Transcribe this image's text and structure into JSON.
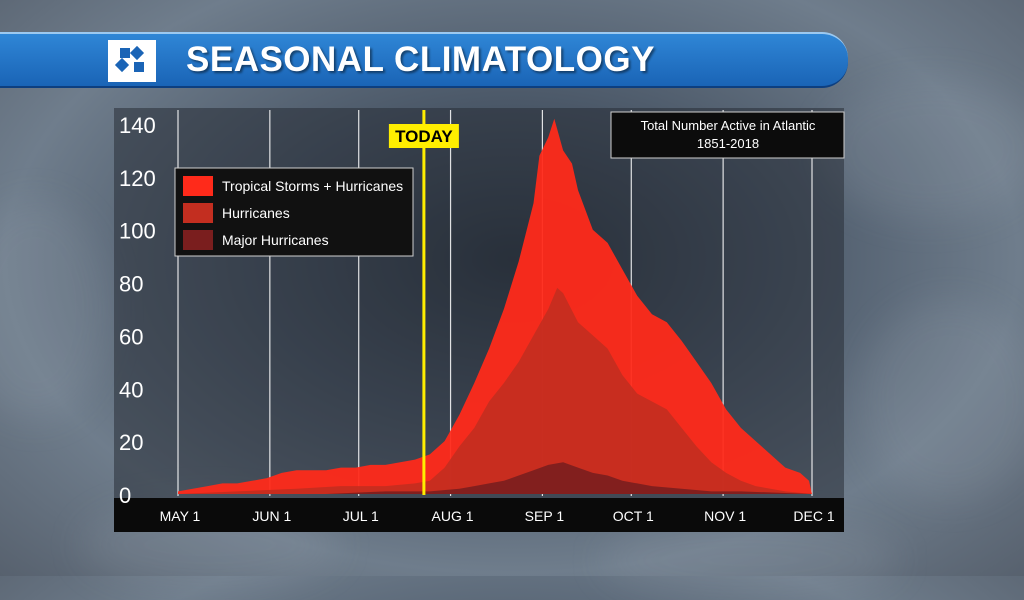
{
  "header": {
    "title": "SEASONAL CLIMATOLOGY",
    "logo_icon": "station-logo-icon"
  },
  "chart_data": {
    "type": "area",
    "title": "Total Number Active in Atlantic",
    "subtitle": "1851-2018",
    "xlabel": "",
    "ylabel": "",
    "ylim": [
      0,
      140
    ],
    "y_ticks": [
      "140",
      "120",
      "100",
      "80",
      "60",
      "40",
      "20",
      "0"
    ],
    "x_tick_labels": [
      "MAY 1",
      "JUN 1",
      "JUL 1",
      "AUG 1",
      "SEP 1",
      "OCT 1",
      "NOV 1",
      "DEC 1"
    ],
    "grid": true,
    "legend_position": "top-left",
    "today_marker": {
      "label": "TODAY",
      "day": 83,
      "color": "#ffee00"
    },
    "series": [
      {
        "name": "Tropical Storms + Hurricanes",
        "color": "#ff2a1a",
        "points": [
          [
            0,
            1
          ],
          [
            5,
            2
          ],
          [
            10,
            3
          ],
          [
            15,
            4
          ],
          [
            20,
            4
          ],
          [
            25,
            5
          ],
          [
            30,
            6
          ],
          [
            35,
            8
          ],
          [
            40,
            9
          ],
          [
            45,
            9
          ],
          [
            50,
            9
          ],
          [
            55,
            10
          ],
          [
            60,
            10
          ],
          [
            65,
            11
          ],
          [
            70,
            11
          ],
          [
            75,
            12
          ],
          [
            80,
            13
          ],
          [
            85,
            15
          ],
          [
            90,
            20
          ],
          [
            95,
            30
          ],
          [
            100,
            42
          ],
          [
            105,
            55
          ],
          [
            110,
            70
          ],
          [
            115,
            88
          ],
          [
            120,
            110
          ],
          [
            122,
            128
          ],
          [
            125,
            135
          ],
          [
            127,
            142
          ],
          [
            130,
            130
          ],
          [
            133,
            125
          ],
          [
            135,
            115
          ],
          [
            140,
            100
          ],
          [
            145,
            95
          ],
          [
            150,
            85
          ],
          [
            155,
            75
          ],
          [
            160,
            68
          ],
          [
            165,
            65
          ],
          [
            170,
            58
          ],
          [
            175,
            50
          ],
          [
            180,
            42
          ],
          [
            185,
            32
          ],
          [
            190,
            25
          ],
          [
            195,
            20
          ],
          [
            200,
            15
          ],
          [
            205,
            10
          ],
          [
            210,
            8
          ],
          [
            213,
            5
          ],
          [
            214,
            0
          ]
        ]
      },
      {
        "name": "Hurricanes",
        "color": "#c32e20",
        "points": [
          [
            0,
            0
          ],
          [
            20,
            1
          ],
          [
            40,
            2
          ],
          [
            55,
            3
          ],
          [
            70,
            3
          ],
          [
            80,
            4
          ],
          [
            85,
            5
          ],
          [
            90,
            10
          ],
          [
            95,
            18
          ],
          [
            100,
            25
          ],
          [
            105,
            35
          ],
          [
            110,
            42
          ],
          [
            115,
            50
          ],
          [
            120,
            60
          ],
          [
            125,
            70
          ],
          [
            128,
            78
          ],
          [
            130,
            76
          ],
          [
            135,
            65
          ],
          [
            140,
            60
          ],
          [
            145,
            55
          ],
          [
            150,
            45
          ],
          [
            155,
            38
          ],
          [
            160,
            35
          ],
          [
            165,
            32
          ],
          [
            170,
            25
          ],
          [
            175,
            18
          ],
          [
            180,
            12
          ],
          [
            185,
            8
          ],
          [
            190,
            5
          ],
          [
            195,
            3
          ],
          [
            200,
            2
          ],
          [
            205,
            1
          ],
          [
            214,
            0
          ]
        ]
      },
      {
        "name": "Major Hurricanes",
        "color": "#7a1e1e",
        "points": [
          [
            0,
            0
          ],
          [
            50,
            0
          ],
          [
            70,
            1
          ],
          [
            85,
            1
          ],
          [
            95,
            2
          ],
          [
            100,
            3
          ],
          [
            105,
            4
          ],
          [
            110,
            5
          ],
          [
            115,
            7
          ],
          [
            120,
            9
          ],
          [
            125,
            11
          ],
          [
            130,
            12
          ],
          [
            135,
            10
          ],
          [
            140,
            8
          ],
          [
            145,
            7
          ],
          [
            150,
            5
          ],
          [
            155,
            4
          ],
          [
            160,
            3
          ],
          [
            170,
            2
          ],
          [
            180,
            1
          ],
          [
            190,
            1
          ],
          [
            214,
            0
          ]
        ]
      }
    ]
  }
}
